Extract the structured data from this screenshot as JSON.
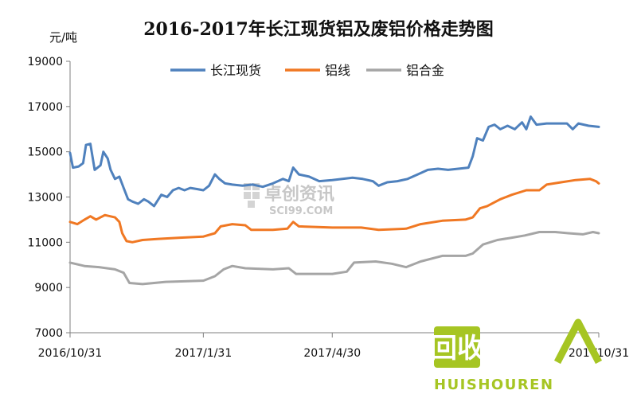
{
  "chart_data": {
    "type": "line",
    "title": "2016-2017年长江现货铝及废铝价格走势图",
    "ylabel": "元/吨",
    "xlabel": "",
    "ylim": [
      7000,
      19000
    ],
    "yticks": [
      "7000",
      "9000",
      "11000",
      "13000",
      "15000",
      "17000",
      "19000"
    ],
    "xlim": [
      "2016-10-31",
      "2017-10-31"
    ],
    "xtick_labels": [
      {
        "date": "2016-10-31",
        "label": "2016/10/31"
      },
      {
        "date": "2017-01-31",
        "label": "2017/1/31"
      },
      {
        "date": "2017-04-30",
        "label": "2017/4/30"
      },
      {
        "date": "2017-07-31",
        "label": "2"
      },
      {
        "date": "2017-10-31",
        "label": "201 /10/31"
      }
    ],
    "grid": false,
    "legend_position": "top",
    "series": [
      {
        "name": "长江现货",
        "color": "#4f81bd",
        "points": [
          [
            "2016-10-31",
            14950
          ],
          [
            "2016-11-02",
            14300
          ],
          [
            "2016-11-06",
            14350
          ],
          [
            "2016-11-09",
            14500
          ],
          [
            "2016-11-11",
            15300
          ],
          [
            "2016-11-14",
            15350
          ],
          [
            "2016-11-17",
            14200
          ],
          [
            "2016-11-21",
            14400
          ],
          [
            "2016-11-23",
            15000
          ],
          [
            "2016-11-26",
            14700
          ],
          [
            "2016-11-28",
            14200
          ],
          [
            "2016-12-01",
            13800
          ],
          [
            "2016-12-04",
            13900
          ],
          [
            "2016-12-07",
            13400
          ],
          [
            "2016-12-10",
            12900
          ],
          [
            "2016-12-13",
            12800
          ],
          [
            "2016-12-17",
            12700
          ],
          [
            "2016-12-21",
            12900
          ],
          [
            "2016-12-24",
            12800
          ],
          [
            "2016-12-28",
            12600
          ],
          [
            "2017-01-02",
            13100
          ],
          [
            "2017-01-06",
            13000
          ],
          [
            "2017-01-10",
            13300
          ],
          [
            "2017-01-14",
            13400
          ],
          [
            "2017-01-18",
            13300
          ],
          [
            "2017-01-22",
            13400
          ],
          [
            "2017-01-27",
            13350
          ],
          [
            "2017-01-31",
            13300
          ],
          [
            "2017-02-04",
            13500
          ],
          [
            "2017-02-08",
            14000
          ],
          [
            "2017-02-11",
            13800
          ],
          [
            "2017-02-15",
            13600
          ],
          [
            "2017-02-20",
            13550
          ],
          [
            "2017-02-27",
            13500
          ],
          [
            "2017-03-06",
            13550
          ],
          [
            "2017-03-13",
            13450
          ],
          [
            "2017-03-20",
            13600
          ],
          [
            "2017-03-27",
            13800
          ],
          [
            "2017-03-31",
            13700
          ],
          [
            "2017-04-03",
            14300
          ],
          [
            "2017-04-07",
            14000
          ],
          [
            "2017-04-14",
            13900
          ],
          [
            "2017-04-21",
            13700
          ],
          [
            "2017-04-30",
            13750
          ],
          [
            "2017-05-07",
            13800
          ],
          [
            "2017-05-14",
            13850
          ],
          [
            "2017-05-21",
            13800
          ],
          [
            "2017-05-28",
            13700
          ],
          [
            "2017-06-01",
            13500
          ],
          [
            "2017-06-07",
            13650
          ],
          [
            "2017-06-14",
            13700
          ],
          [
            "2017-06-21",
            13800
          ],
          [
            "2017-06-28",
            14000
          ],
          [
            "2017-07-05",
            14200
          ],
          [
            "2017-07-12",
            14250
          ],
          [
            "2017-07-19",
            14200
          ],
          [
            "2017-07-26",
            14250
          ],
          [
            "2017-08-02",
            14300
          ],
          [
            "2017-08-05",
            14800
          ],
          [
            "2017-08-08",
            15600
          ],
          [
            "2017-08-12",
            15500
          ],
          [
            "2017-08-16",
            16100
          ],
          [
            "2017-08-20",
            16200
          ],
          [
            "2017-08-24",
            16000
          ],
          [
            "2017-08-29",
            16150
          ],
          [
            "2017-09-03",
            16000
          ],
          [
            "2017-09-08",
            16300
          ],
          [
            "2017-09-11",
            16000
          ],
          [
            "2017-09-14",
            16550
          ],
          [
            "2017-09-18",
            16200
          ],
          [
            "2017-09-25",
            16250
          ],
          [
            "2017-10-02",
            16250
          ],
          [
            "2017-10-09",
            16250
          ],
          [
            "2017-10-13",
            16000
          ],
          [
            "2017-10-17",
            16250
          ],
          [
            "2017-10-24",
            16150
          ],
          [
            "2017-10-31",
            16100
          ]
        ]
      },
      {
        "name": "铝线",
        "color": "#f07823",
        "points": [
          [
            "2016-10-31",
            11900
          ],
          [
            "2016-11-05",
            11800
          ],
          [
            "2016-11-10",
            12000
          ],
          [
            "2016-11-14",
            12150
          ],
          [
            "2016-11-18",
            12000
          ],
          [
            "2016-11-24",
            12200
          ],
          [
            "2016-12-01",
            12100
          ],
          [
            "2016-12-04",
            11900
          ],
          [
            "2016-12-06",
            11400
          ],
          [
            "2016-12-09",
            11050
          ],
          [
            "2016-12-13",
            11000
          ],
          [
            "2016-12-20",
            11100
          ],
          [
            "2016-12-31",
            11150
          ],
          [
            "2017-01-15",
            11200
          ],
          [
            "2017-01-31",
            11250
          ],
          [
            "2017-02-08",
            11400
          ],
          [
            "2017-02-12",
            11700
          ],
          [
            "2017-02-20",
            11800
          ],
          [
            "2017-03-01",
            11750
          ],
          [
            "2017-03-05",
            11550
          ],
          [
            "2017-03-20",
            11550
          ],
          [
            "2017-03-30",
            11600
          ],
          [
            "2017-04-03",
            11900
          ],
          [
            "2017-04-07",
            11700
          ],
          [
            "2017-04-30",
            11650
          ],
          [
            "2017-05-20",
            11650
          ],
          [
            "2017-06-01",
            11550
          ],
          [
            "2017-06-20",
            11600
          ],
          [
            "2017-06-30",
            11800
          ],
          [
            "2017-07-15",
            11950
          ],
          [
            "2017-07-31",
            12000
          ],
          [
            "2017-08-05",
            12100
          ],
          [
            "2017-08-10",
            12500
          ],
          [
            "2017-08-15",
            12600
          ],
          [
            "2017-08-24",
            12900
          ],
          [
            "2017-09-01",
            13100
          ],
          [
            "2017-09-11",
            13300
          ],
          [
            "2017-09-20",
            13300
          ],
          [
            "2017-09-25",
            13550
          ],
          [
            "2017-10-05",
            13650
          ],
          [
            "2017-10-15",
            13750
          ],
          [
            "2017-10-25",
            13800
          ],
          [
            "2017-10-29",
            13700
          ],
          [
            "2017-10-31",
            13600
          ]
        ]
      },
      {
        "name": "铝合金",
        "color": "#a5a5a5",
        "points": [
          [
            "2016-10-31",
            10100
          ],
          [
            "2016-11-10",
            9950
          ],
          [
            "2016-11-20",
            9900
          ],
          [
            "2016-12-01",
            9800
          ],
          [
            "2016-12-07",
            9650
          ],
          [
            "2016-12-11",
            9200
          ],
          [
            "2016-12-20",
            9150
          ],
          [
            "2017-01-05",
            9250
          ],
          [
            "2017-01-31",
            9300
          ],
          [
            "2017-02-08",
            9500
          ],
          [
            "2017-02-14",
            9800
          ],
          [
            "2017-02-20",
            9950
          ],
          [
            "2017-03-01",
            9850
          ],
          [
            "2017-03-20",
            9800
          ],
          [
            "2017-03-31",
            9850
          ],
          [
            "2017-04-05",
            9600
          ],
          [
            "2017-04-15",
            9600
          ],
          [
            "2017-04-30",
            9600
          ],
          [
            "2017-05-10",
            9700
          ],
          [
            "2017-05-15",
            10100
          ],
          [
            "2017-05-30",
            10150
          ],
          [
            "2017-06-10",
            10050
          ],
          [
            "2017-06-20",
            9900
          ],
          [
            "2017-06-30",
            10150
          ],
          [
            "2017-07-15",
            10400
          ],
          [
            "2017-07-31",
            10400
          ],
          [
            "2017-08-05",
            10500
          ],
          [
            "2017-08-12",
            10900
          ],
          [
            "2017-08-22",
            11100
          ],
          [
            "2017-09-01",
            11200
          ],
          [
            "2017-09-10",
            11300
          ],
          [
            "2017-09-20",
            11450
          ],
          [
            "2017-10-01",
            11450
          ],
          [
            "2017-10-10",
            11400
          ],
          [
            "2017-10-20",
            11350
          ],
          [
            "2017-10-27",
            11450
          ],
          [
            "2017-10-31",
            11400
          ]
        ]
      }
    ]
  },
  "watermark": {
    "cn": "卓创资讯",
    "en": "SCI99.COM"
  },
  "badge": {
    "text_cn": "回收",
    "text_en": "HUISHOUREN",
    "color": "#a6c523"
  }
}
